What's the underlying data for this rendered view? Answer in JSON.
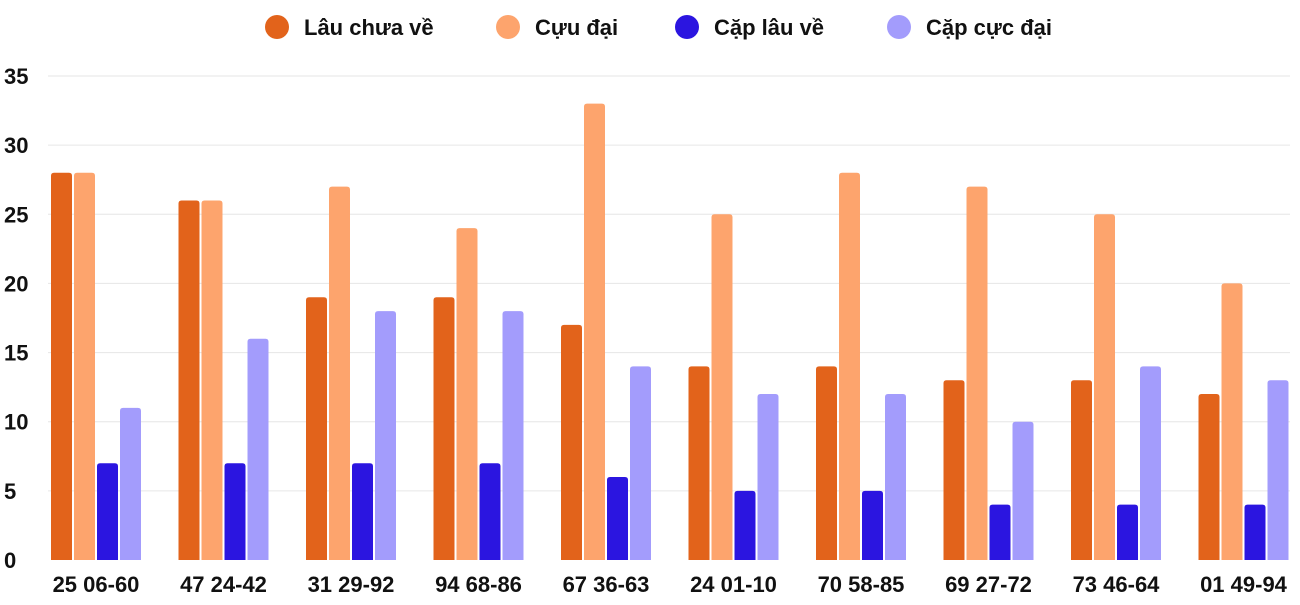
{
  "chart_data": {
    "type": "bar",
    "title": "",
    "xlabel": "",
    "ylabel": "",
    "ylim": [
      0,
      35
    ],
    "yticks": [
      0,
      5,
      10,
      15,
      20,
      25,
      30,
      35
    ],
    "grid": true,
    "legend_position": "top-center",
    "categories": [
      "25 06-60",
      "47 24-42",
      "31 29-92",
      "94 68-86",
      "67 36-63",
      "24 01-10",
      "70 58-85",
      "69 27-72",
      "73 46-64",
      "01 49-94"
    ],
    "series": [
      {
        "name": "Lâu chưa về",
        "color": "#e2631b",
        "values": [
          28,
          26,
          19,
          19,
          17,
          14,
          14,
          13,
          13,
          12
        ]
      },
      {
        "name": "Cựu đại",
        "color": "#fda46d",
        "values": [
          28,
          26,
          27,
          24,
          33,
          25,
          28,
          27,
          25,
          20
        ]
      },
      {
        "name": "Cặp lâu về",
        "color": "#2b15e0",
        "values": [
          7,
          7,
          7,
          7,
          6,
          5,
          5,
          4,
          4,
          4
        ]
      },
      {
        "name": "Cặp cực đại",
        "color": "#a39cfc",
        "values": [
          11,
          16,
          18,
          18,
          14,
          12,
          12,
          10,
          14,
          13
        ]
      }
    ]
  }
}
